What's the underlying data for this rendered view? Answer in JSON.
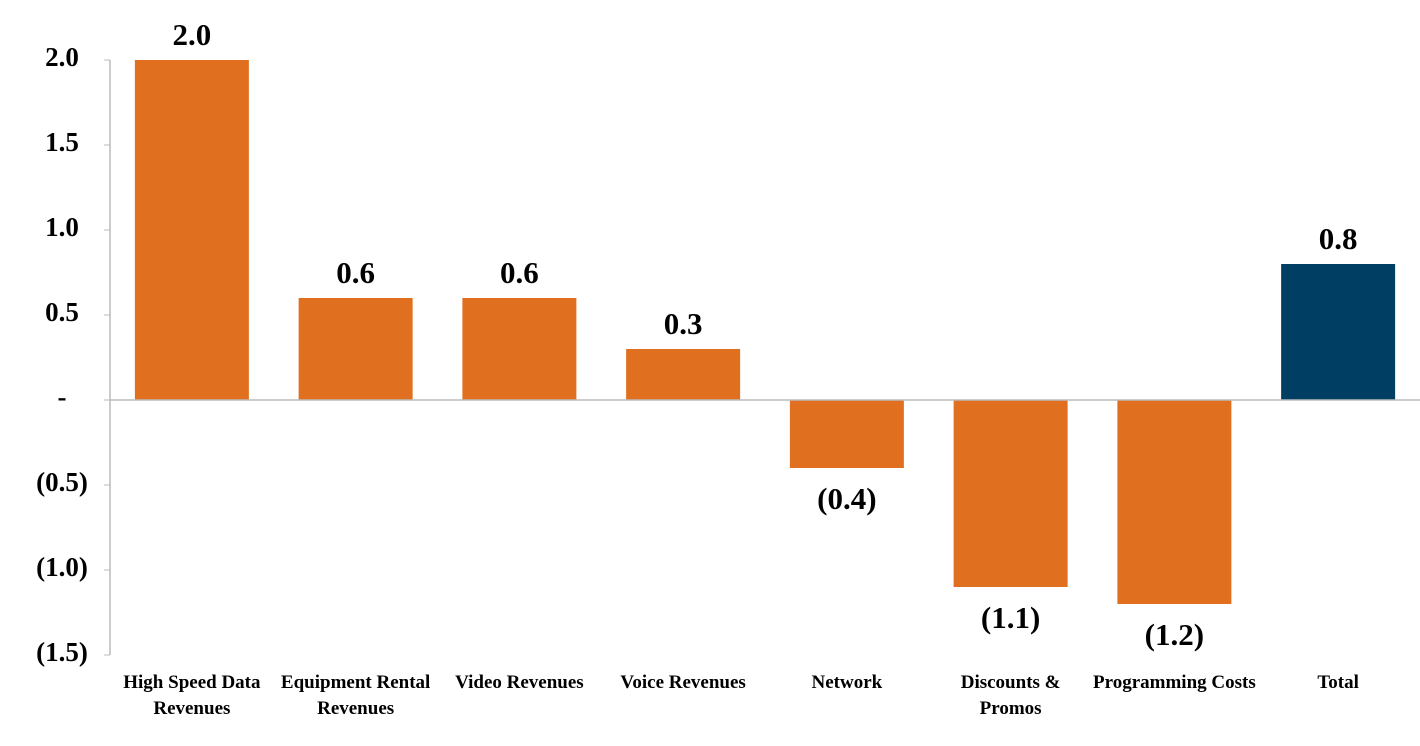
{
  "chart_data": {
    "type": "bar",
    "categories": [
      "High Speed Data Revenues",
      "Equipment Rental Revenues",
      "Video Revenues",
      "Voice Revenues",
      "Network",
      "Discounts & Promos",
      "Programming Costs",
      "Total"
    ],
    "values": [
      2.0,
      0.6,
      0.6,
      0.3,
      -0.4,
      -1.1,
      -1.2,
      0.8
    ],
    "value_labels": [
      "2.0",
      "0.6",
      "0.6",
      "0.3",
      "(0.4)",
      "(1.1)",
      "(1.2)",
      "0.8"
    ],
    "colors": [
      "#e07020",
      "#e07020",
      "#e07020",
      "#e07020",
      "#e07020",
      "#e07020",
      "#e07020",
      "#003f63"
    ],
    "ylim": [
      -1.5,
      2.0
    ],
    "yticks": [
      {
        "value": 2.0,
        "label": "2.0"
      },
      1.5,
      {
        "value": 1.0,
        "label": "1.0"
      },
      0.5,
      {
        "value": 0,
        "label": "-"
      },
      {
        "value": -0.5,
        "label": "(0.5)"
      },
      {
        "value": -1.0,
        "label": "(1.0)"
      },
      {
        "value": -1.5,
        "label": "(1.5)"
      }
    ],
    "grid": false
  }
}
